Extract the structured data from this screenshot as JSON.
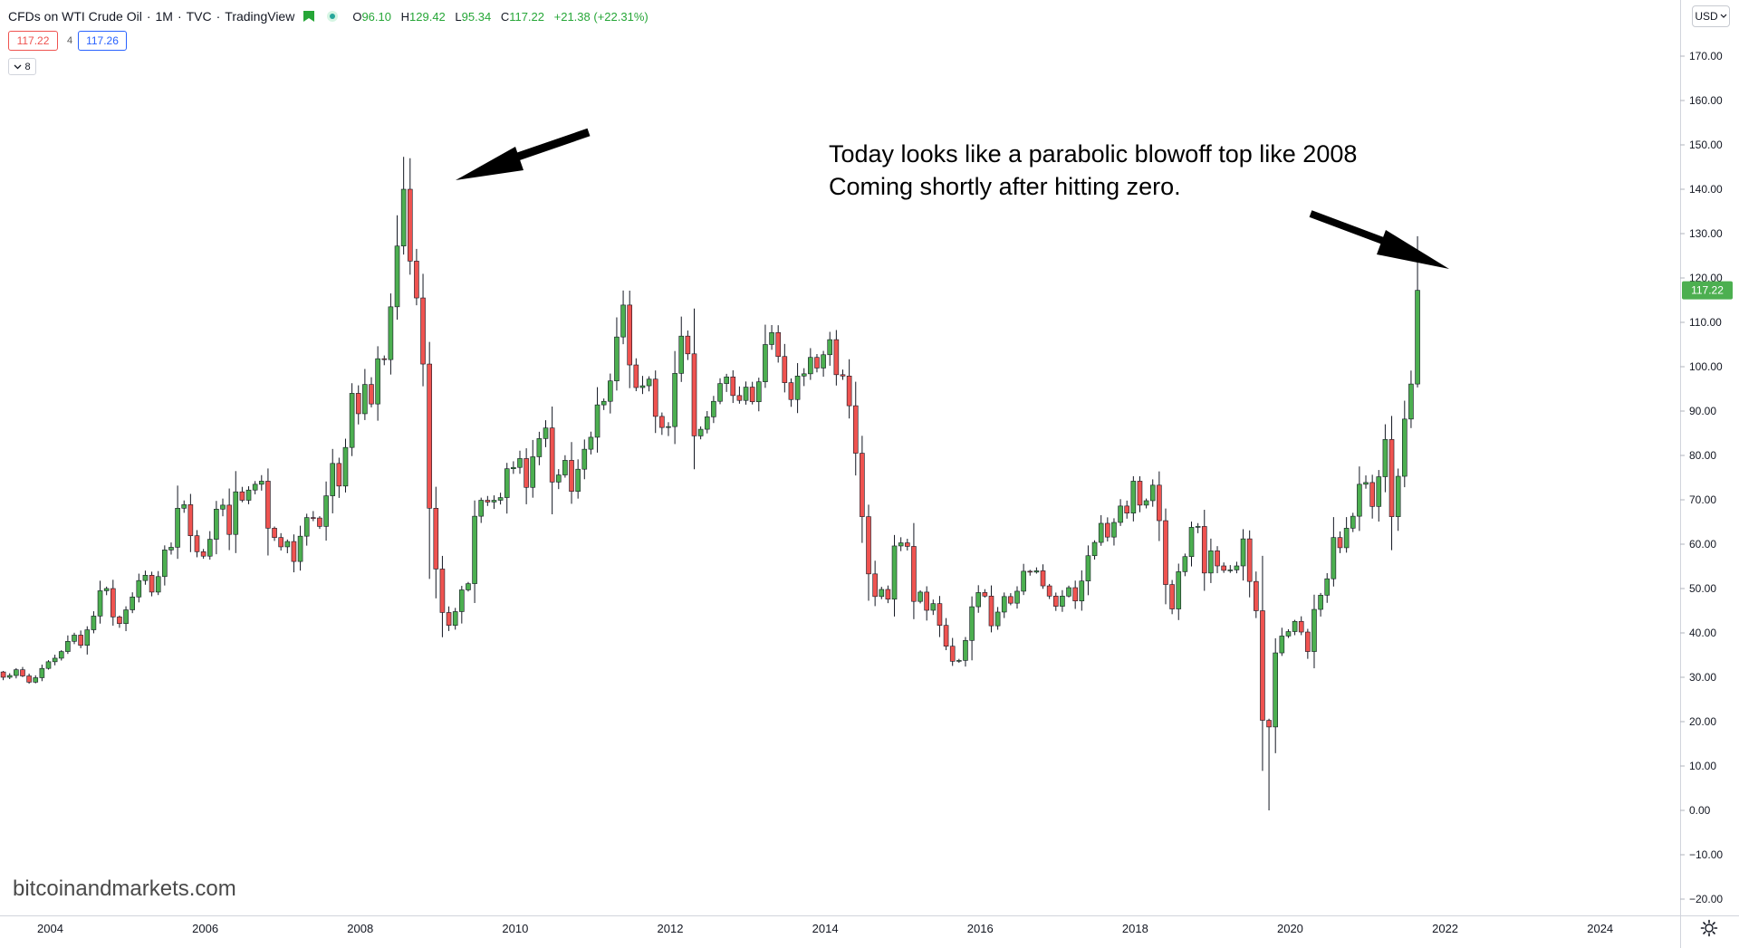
{
  "legend": {
    "symbol": "CFDs on WTI Crude Oil",
    "interval": "1M",
    "exchange": "TVC",
    "source": "TradingView",
    "sep": "·",
    "ohlc": {
      "open_key": "O",
      "open": "96.10",
      "high_key": "H",
      "high": "129.42",
      "low_key": "L",
      "low": "95.34",
      "close_key": "C",
      "close": "117.22",
      "change": "+21.38 (+22.31%)"
    },
    "bid": "117.22",
    "spread": "4",
    "ask": "117.26",
    "collapse_count": "8",
    "flag_color": "#26a637",
    "status_color": "#26a69a"
  },
  "currency": "USD",
  "annotation": {
    "line1": "Today looks like a parabolic blowoff top like 2008",
    "line2": "Coming shortly after hitting zero."
  },
  "watermark": "bitcoinandmarkets.com",
  "colors": {
    "up": "#4caf50",
    "down": "#ef5350",
    "wick": "#131722",
    "current_price_bg": "#4caf50",
    "grid_border": "#d1d4dc"
  },
  "chart_data": {
    "type": "candlestick",
    "title": "CFDs on WTI Crude Oil · 1M · TVC",
    "y_unit": "USD",
    "ylim": [
      -20,
      175
    ],
    "y_ticks": [
      "170.00",
      "160.00",
      "150.00",
      "140.00",
      "130.00",
      "120.00",
      "110.00",
      "100.00",
      "90.00",
      "80.00",
      "70.00",
      "60.00",
      "50.00",
      "40.00",
      "30.00",
      "20.00",
      "10.00",
      "0.00",
      "−10.00",
      "−20.00"
    ],
    "x_ticks": [
      "2004",
      "2006",
      "2008",
      "2010",
      "2012",
      "2014",
      "2016",
      "2018",
      "2020",
      "2022",
      "2024"
    ],
    "current_price_label": "117.22",
    "current_price": 117.22,
    "start": "2003-03",
    "closes": [
      30.5,
      29.7,
      31.2,
      30.0,
      30.4,
      31.7,
      30.3,
      28.9,
      29.9,
      32.0,
      33.5,
      34.3,
      35.8,
      38.1,
      39.5,
      37.2,
      40.7,
      43.8,
      49.5,
      50.0,
      43.6,
      42.1,
      45.2,
      48.1,
      51.8,
      53.0,
      49.2,
      52.7,
      58.7,
      59.3,
      68.1,
      68.9,
      61.9,
      58.3,
      57.3,
      61.1,
      67.9,
      68.8,
      62.2,
      71.8,
      69.9,
      72.2,
      73.5,
      74.2,
      63.6,
      61.5,
      59.4,
      60.6,
      56.1,
      61.8,
      66.0,
      65.9,
      64.0,
      70.9,
      78.2,
      73.1,
      81.8,
      94.0,
      89.4,
      96.0,
      91.6,
      101.8,
      101.6,
      113.5,
      127.2,
      140.0,
      123.8,
      115.5,
      100.6,
      68.1,
      54.4,
      44.6,
      41.7,
      44.8,
      49.7,
      51.1,
      66.3,
      69.9,
      69.5,
      69.9,
      70.5,
      77.0,
      77.3,
      79.3,
      72.8,
      79.7,
      83.8,
      86.2,
      74.0,
      75.6,
      78.9,
      71.9,
      76.9,
      81.4,
      84.1,
      91.4,
      92.2,
      96.8,
      106.7,
      113.9,
      100.4,
      95.3,
      95.7,
      97.2,
      88.8,
      86.3,
      86.5,
      98.5,
      106.9,
      102.9,
      84.4,
      85.9,
      88.7,
      92.2,
      96.2,
      97.7,
      93.5,
      92.4,
      95.4,
      92.1,
      96.6,
      105.0,
      107.7,
      102.3,
      96.4,
      92.6,
      97.9,
      98.4,
      102.1,
      99.7,
      102.7,
      106.1,
      98.2,
      97.9,
      91.2,
      80.5,
      66.2,
      53.3,
      48.2,
      49.8,
      47.6,
      59.6,
      60.3,
      59.5,
      47.1,
      49.2,
      45.1,
      46.6,
      41.7,
      37.0,
      33.6,
      33.8,
      38.3,
      45.9,
      49.1,
      48.3,
      41.6,
      44.7,
      48.2,
      46.7,
      49.4,
      53.9,
      53.7,
      54.0,
      50.6,
      48.3,
      46.0,
      48.3,
      50.2,
      47.2,
      51.7,
      57.4,
      60.4,
      64.7,
      61.6,
      64.9,
      68.6,
      67.0,
      74.2,
      68.8,
      69.8,
      73.3,
      65.3,
      50.9,
      45.4,
      53.8,
      57.2,
      63.8,
      64.0,
      53.5,
      58.5,
      55.1,
      54.1,
      54.2,
      55.1,
      61.2,
      51.6,
      45.0,
      20.3,
      18.8,
      35.5,
      39.3,
      40.3,
      42.6,
      40.2,
      35.8,
      45.3,
      48.5,
      52.2,
      61.5,
      59.2,
      63.6,
      66.3,
      73.5,
      73.9,
      68.5,
      75.2,
      83.6,
      66.2,
      75.3,
      88.2,
      96.1,
      117.22
    ],
    "last_candle": {
      "open": 96.1,
      "high": 129.42,
      "low": 95.34,
      "close": 117.22
    }
  }
}
